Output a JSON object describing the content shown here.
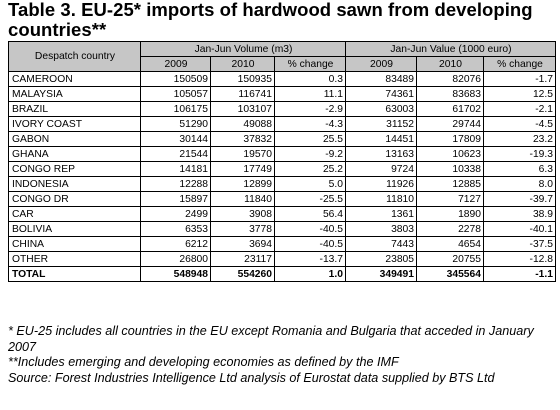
{
  "title": "Table 3. EU-25* imports of hardwood sawn from developing countries**",
  "table": {
    "col_country": "Despatch country",
    "group_volume": "Jan-Jun Volume (m3)",
    "group_value": "Jan-Jun Value (1000 euro)",
    "sub_headers": [
      "2009",
      "2010",
      "% change",
      "2009",
      "2010",
      "% change"
    ],
    "rows": [
      {
        "country": "CAMEROON",
        "v2009": "150509",
        "v2010": "150935",
        "vchg": "0.3",
        "e2009": "83489",
        "e2010": "82076",
        "echg": "-1.7"
      },
      {
        "country": "MALAYSIA",
        "v2009": "105057",
        "v2010": "116741",
        "vchg": "11.1",
        "e2009": "74361",
        "e2010": "83683",
        "echg": "12.5"
      },
      {
        "country": "BRAZIL",
        "v2009": "106175",
        "v2010": "103107",
        "vchg": "-2.9",
        "e2009": "63003",
        "e2010": "61702",
        "echg": "-2.1"
      },
      {
        "country": "IVORY COAST",
        "v2009": "51290",
        "v2010": "49088",
        "vchg": "-4.3",
        "e2009": "31152",
        "e2010": "29744",
        "echg": "-4.5"
      },
      {
        "country": "GABON",
        "v2009": "30144",
        "v2010": "37832",
        "vchg": "25.5",
        "e2009": "14451",
        "e2010": "17809",
        "echg": "23.2"
      },
      {
        "country": "GHANA",
        "v2009": "21544",
        "v2010": "19570",
        "vchg": "-9.2",
        "e2009": "13163",
        "e2010": "10623",
        "echg": "-19.3"
      },
      {
        "country": "CONGO REP",
        "v2009": "14181",
        "v2010": "17749",
        "vchg": "25.2",
        "e2009": "9724",
        "e2010": "10338",
        "echg": "6.3"
      },
      {
        "country": "INDONESIA",
        "v2009": "12288",
        "v2010": "12899",
        "vchg": "5.0",
        "e2009": "11926",
        "e2010": "12885",
        "echg": "8.0"
      },
      {
        "country": "CONGO DR",
        "v2009": "15897",
        "v2010": "11840",
        "vchg": "-25.5",
        "e2009": "11810",
        "e2010": "7127",
        "echg": "-39.7"
      },
      {
        "country": "CAR",
        "v2009": "2499",
        "v2010": "3908",
        "vchg": "56.4",
        "e2009": "1361",
        "e2010": "1890",
        "echg": "38.9"
      },
      {
        "country": "BOLIVIA",
        "v2009": "6353",
        "v2010": "3778",
        "vchg": "-40.5",
        "e2009": "3803",
        "e2010": "2278",
        "echg": "-40.1"
      },
      {
        "country": "CHINA",
        "v2009": "6212",
        "v2010": "3694",
        "vchg": "-40.5",
        "e2009": "7443",
        "e2010": "4654",
        "echg": "-37.5"
      },
      {
        "country": "OTHER",
        "v2009": "26800",
        "v2010": "23117",
        "vchg": "-13.7",
        "e2009": "23805",
        "e2010": "20755",
        "echg": "-12.8"
      }
    ],
    "total": {
      "country": "TOTAL",
      "v2009": "548948",
      "v2010": "554260",
      "vchg": "1.0",
      "e2009": "349491",
      "e2010": "345564",
      "echg": "-1.1"
    }
  },
  "notes": [
    "* EU-25 includes all countries in the EU except Romania and Bulgaria that acceded in January 2007",
    "**Includes emerging and developing economies as defined by the IMF",
    "Source: Forest Industries Intelligence Ltd analysis of Eurostat data supplied by BTS Ltd"
  ]
}
